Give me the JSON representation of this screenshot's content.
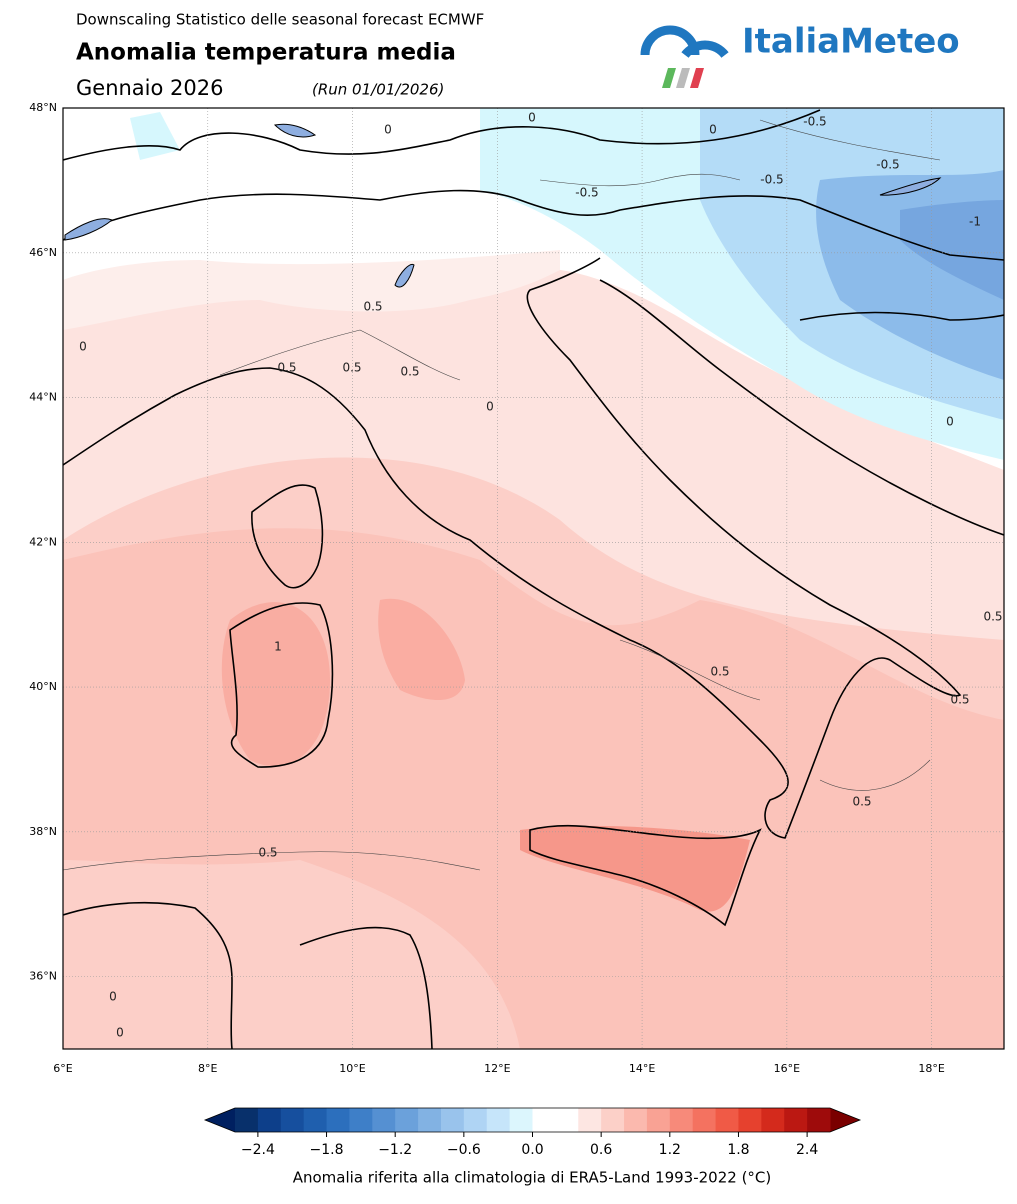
{
  "header": {
    "subtitle": "Downscaling Statistico delle seasonal forecast ECMWF",
    "title": "Anomalia temperatura media",
    "period": "Gennaio 2026",
    "run": "(Run 01/01/2026)"
  },
  "logo": {
    "text": "ItaliaMeteo"
  },
  "map": {
    "xlim": [
      6,
      19
    ],
    "ylim": [
      35,
      48
    ],
    "lon_ticks": [
      {
        "value": 6,
        "label": "6°E"
      },
      {
        "value": 8,
        "label": "8°E"
      },
      {
        "value": 10,
        "label": "10°E"
      },
      {
        "value": 12,
        "label": "12°E"
      },
      {
        "value": 14,
        "label": "14°E"
      },
      {
        "value": 16,
        "label": "16°E"
      },
      {
        "value": 18,
        "label": "18°E"
      }
    ],
    "lat_ticks": [
      {
        "value": 36,
        "label": "36°N"
      },
      {
        "value": 38,
        "label": "38°N"
      },
      {
        "value": 40,
        "label": "40°N"
      },
      {
        "value": 42,
        "label": "42°N"
      },
      {
        "value": 44,
        "label": "44°N"
      },
      {
        "value": 46,
        "label": "46°N"
      },
      {
        "value": 48,
        "label": "48°N"
      }
    ],
    "contour_labels": [
      "0",
      "0",
      "0",
      "-0.5",
      "-0.5",
      "-0.5",
      "-0.5",
      "-1",
      "0.5",
      "0.5",
      "0.5",
      "0.5",
      "0",
      "0",
      "1",
      "0.5",
      "0.5",
      "0.5",
      "0.5",
      "0.5",
      "0",
      "0",
      "0"
    ]
  },
  "colorbar": {
    "range": [
      -2.6,
      2.6
    ],
    "colors": [
      "#08306b",
      "#0d3f8a",
      "#164f9e",
      "#1f5fae",
      "#2c6fbd",
      "#3e7fc8",
      "#5590d2",
      "#6ba1db",
      "#82b2e3",
      "#99c3ec",
      "#afd4f4",
      "#c6e5fa",
      "#dcf6fd",
      "#ffffff",
      "#ffffff",
      "#fde6e2",
      "#fcd0c8",
      "#fbb9ae",
      "#f9a294",
      "#f78a7a",
      "#f47260",
      "#f05a46",
      "#e6412e",
      "#d42a1c",
      "#bb1812",
      "#9e0b0b"
    ],
    "under_color": "#002060",
    "over_color": "#7a0000",
    "ticks": [
      {
        "value": -2.4,
        "label": "−2.4"
      },
      {
        "value": -1.8,
        "label": "−1.8"
      },
      {
        "value": -1.2,
        "label": "−1.2"
      },
      {
        "value": -0.6,
        "label": "−0.6"
      },
      {
        "value": 0.0,
        "label": "0.0"
      },
      0.6,
      1.2,
      1.8,
      2.4
    ],
    "label": "Anomalia riferita alla climatologia di ERA5-Land 1993-2022 (°C)"
  }
}
